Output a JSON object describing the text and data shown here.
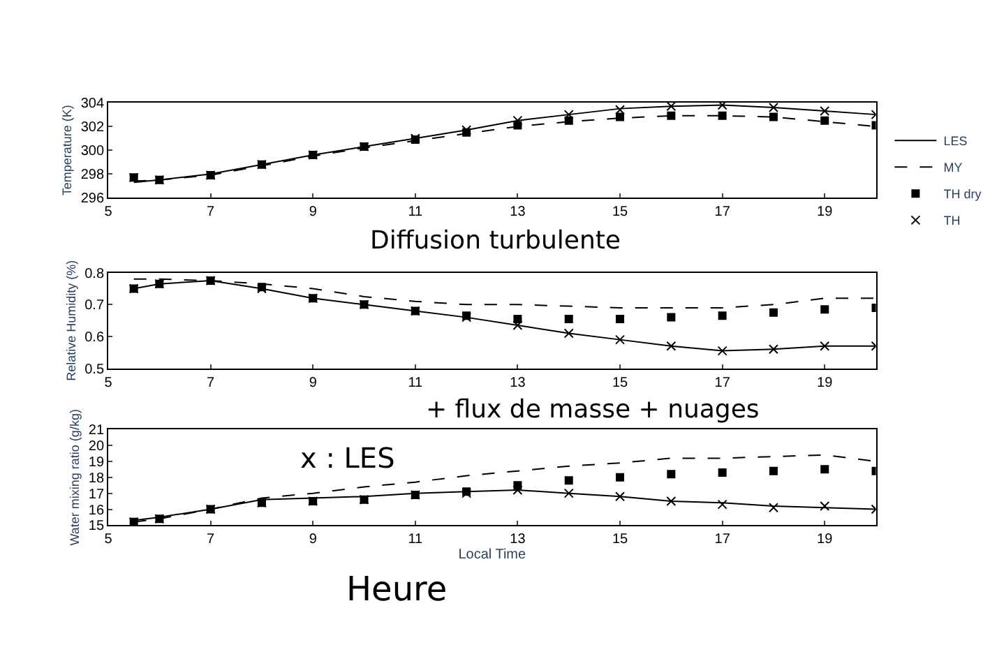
{
  "chart_data": [
    {
      "type": "line",
      "ylabel": "Temperature (K)",
      "x": [
        5.5,
        6,
        7,
        8,
        9,
        10,
        11,
        12,
        13,
        14,
        15,
        16,
        17,
        18,
        19,
        20
      ],
      "xlim": [
        5,
        20
      ],
      "xticks": [
        5,
        7,
        9,
        11,
        13,
        15,
        17,
        19
      ],
      "ylim": [
        296,
        304
      ],
      "yticks": [
        296,
        298,
        300,
        302,
        304
      ],
      "legend": "right",
      "series": [
        {
          "name": "LES",
          "line_style": "solid",
          "color": "#000000",
          "values": [
            297.3,
            297.5,
            298.0,
            298.8,
            299.6,
            300.3,
            301.0,
            301.7,
            302.5,
            303.0,
            303.5,
            303.7,
            303.8,
            303.6,
            303.3,
            303.0
          ]
        },
        {
          "name": "MY",
          "line_style": "dashed",
          "color": "#000000",
          "values": [
            297.4,
            297.5,
            297.9,
            298.7,
            299.5,
            300.2,
            300.8,
            301.4,
            302.0,
            302.4,
            302.7,
            302.9,
            302.9,
            302.8,
            302.4,
            302.0
          ]
        },
        {
          "name": "TH dry",
          "type": "scatter",
          "marker": "square",
          "color": "#000000",
          "values": [
            297.7,
            297.5,
            297.9,
            298.8,
            299.6,
            300.3,
            300.9,
            301.5,
            302.1,
            302.5,
            302.8,
            302.9,
            302.9,
            302.8,
            302.5,
            302.1
          ]
        },
        {
          "name": "TH",
          "type": "scatter",
          "marker": "cross",
          "color": "#000000",
          "values": [
            297.7,
            297.5,
            297.9,
            298.8,
            299.6,
            300.3,
            301.0,
            301.7,
            302.5,
            303.0,
            303.4,
            303.7,
            303.8,
            303.6,
            303.3,
            303.0
          ]
        }
      ]
    },
    {
      "type": "line",
      "ylabel": "Relative Humidity (%)",
      "x": [
        5.5,
        6,
        7,
        8,
        9,
        10,
        11,
        12,
        13,
        14,
        15,
        16,
        17,
        18,
        19,
        20
      ],
      "xlim": [
        5,
        20
      ],
      "xticks": [
        5,
        7,
        9,
        11,
        13,
        15,
        17,
        19
      ],
      "ylim": [
        0.5,
        0.8
      ],
      "yticks": [
        0.5,
        0.6,
        0.7,
        0.8
      ],
      "annotations": [
        "Diffusion turbulente",
        "+ flux de masse + nuages"
      ],
      "series": [
        {
          "line_style": "solid",
          "color": "#000000",
          "values": [
            0.75,
            0.765,
            0.775,
            0.75,
            0.72,
            0.7,
            0.68,
            0.66,
            0.635,
            0.61,
            0.59,
            0.57,
            0.555,
            0.56,
            0.57,
            0.57
          ]
        },
        {
          "line_style": "dashed",
          "color": "#000000",
          "values": [
            0.78,
            0.78,
            0.775,
            0.765,
            0.75,
            0.725,
            0.71,
            0.7,
            0.7,
            0.695,
            0.69,
            0.69,
            0.69,
            0.7,
            0.72,
            0.72
          ]
        },
        {
          "type": "scatter",
          "marker": "square",
          "color": "#000000",
          "values": [
            0.75,
            0.765,
            0.775,
            0.755,
            0.72,
            0.7,
            0.68,
            0.665,
            0.655,
            0.655,
            0.655,
            0.66,
            0.665,
            0.675,
            0.685,
            0.69
          ]
        },
        {
          "type": "scatter",
          "marker": "cross",
          "color": "#000000",
          "values": [
            0.75,
            0.765,
            0.775,
            0.75,
            0.72,
            0.7,
            0.68,
            0.66,
            0.635,
            0.61,
            0.59,
            0.57,
            0.555,
            0.56,
            0.57,
            0.57
          ]
        }
      ]
    },
    {
      "type": "line",
      "ylabel": "Water mixing ratio (g/kg)",
      "xlabel": "Local Time",
      "x": [
        5.5,
        6,
        7,
        8,
        9,
        10,
        11,
        12,
        13,
        14,
        15,
        16,
        17,
        18,
        19,
        20
      ],
      "xlim": [
        5,
        20
      ],
      "xticks": [
        5,
        7,
        9,
        11,
        13,
        15,
        17,
        19
      ],
      "ylim": [
        15,
        21
      ],
      "yticks": [
        15,
        16,
        17,
        18,
        19,
        20,
        21
      ],
      "annotations": [
        "x : LES",
        "Heure"
      ],
      "series": [
        {
          "line_style": "solid",
          "color": "#000000",
          "values": [
            15.3,
            15.5,
            16.0,
            16.6,
            16.7,
            16.8,
            17.0,
            17.1,
            17.2,
            17.0,
            16.8,
            16.5,
            16.4,
            16.2,
            16.1,
            16.0
          ]
        },
        {
          "line_style": "dashed",
          "color": "#000000",
          "values": [
            15.2,
            15.4,
            16.0,
            16.7,
            17.0,
            17.4,
            17.7,
            18.1,
            18.4,
            18.7,
            18.9,
            19.2,
            19.2,
            19.3,
            19.4,
            19.0
          ]
        },
        {
          "type": "scatter",
          "marker": "square",
          "color": "#000000",
          "values": [
            15.2,
            15.4,
            16.0,
            16.4,
            16.5,
            16.6,
            16.9,
            17.1,
            17.5,
            17.8,
            18.0,
            18.2,
            18.3,
            18.4,
            18.5,
            18.4
          ]
        },
        {
          "type": "scatter",
          "marker": "cross",
          "color": "#000000",
          "values": [
            15.2,
            15.4,
            16.0,
            16.4,
            16.5,
            16.6,
            16.9,
            17.0,
            17.2,
            17.0,
            16.8,
            16.5,
            16.3,
            16.1,
            16.2,
            16.0
          ]
        }
      ]
    }
  ]
}
